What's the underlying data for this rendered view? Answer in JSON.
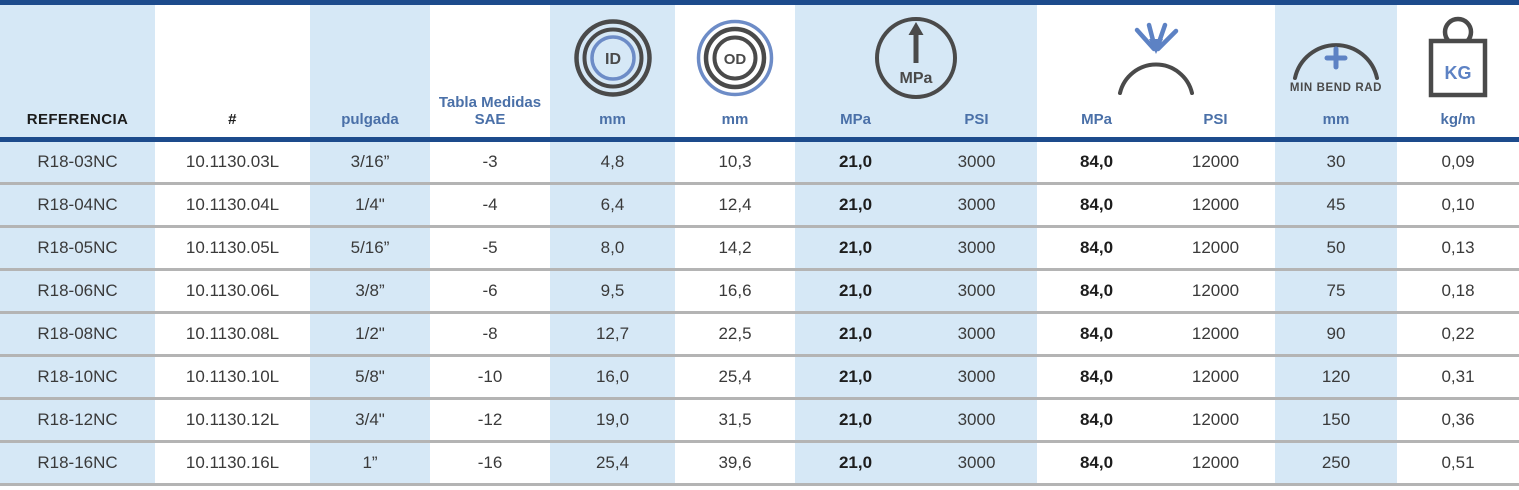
{
  "colors": {
    "navy": "#1d4b8c",
    "light_blue": "#d6e8f6",
    "header_blue": "#4a70a8",
    "icon_blue": "#5d82c4",
    "icon_dark": "#4a4a4a",
    "row_divider": "#b4b4b4"
  },
  "table": {
    "headers": {
      "referencia": "REFERENCIA",
      "part_number": "#",
      "pulgada": "pulgada",
      "sae_line1": "Tabla Medidas",
      "sae_line2": "SAE",
      "id_unit": "mm",
      "od_unit": "mm",
      "work_mpa": "MPa",
      "work_psi": "PSI",
      "burst_mpa": "MPa",
      "burst_psi": "PSI",
      "bend_unit": "mm",
      "weight_unit": "kg/m",
      "id_icon_label": "ID",
      "od_icon_label": "OD",
      "gauge_icon_label": "MPa",
      "min_bend_label": "MIN BEND RAD",
      "kg_icon_label": "KG"
    },
    "rows": [
      {
        "ref": "R18-03NC",
        "num": "10.1130.03L",
        "inch": "3/16”",
        "sae": "-3",
        "id": "4,8",
        "od": "10,3",
        "wp_mpa": "21,0",
        "wp_psi": "3000",
        "bp_mpa": "84,0",
        "bp_psi": "12000",
        "bend": "30",
        "weight": "0,09"
      },
      {
        "ref": "R18-04NC",
        "num": "10.1130.04L",
        "inch": "1/4\"",
        "sae": "-4",
        "id": "6,4",
        "od": "12,4",
        "wp_mpa": "21,0",
        "wp_psi": "3000",
        "bp_mpa": "84,0",
        "bp_psi": "12000",
        "bend": "45",
        "weight": "0,10"
      },
      {
        "ref": "R18-05NC",
        "num": "10.1130.05L",
        "inch": "5/16”",
        "sae": "-5",
        "id": "8,0",
        "od": "14,2",
        "wp_mpa": "21,0",
        "wp_psi": "3000",
        "bp_mpa": "84,0",
        "bp_psi": "12000",
        "bend": "50",
        "weight": "0,13"
      },
      {
        "ref": "R18-06NC",
        "num": "10.1130.06L",
        "inch": "3/8”",
        "sae": "-6",
        "id": "9,5",
        "od": "16,6",
        "wp_mpa": "21,0",
        "wp_psi": "3000",
        "bp_mpa": "84,0",
        "bp_psi": "12000",
        "bend": "75",
        "weight": "0,18"
      },
      {
        "ref": "R18-08NC",
        "num": "10.1130.08L",
        "inch": "1/2\"",
        "sae": "-8",
        "id": "12,7",
        "od": "22,5",
        "wp_mpa": "21,0",
        "wp_psi": "3000",
        "bp_mpa": "84,0",
        "bp_psi": "12000",
        "bend": "90",
        "weight": "0,22"
      },
      {
        "ref": "R18-10NC",
        "num": "10.1130.10L",
        "inch": "5/8\"",
        "sae": "-10",
        "id": "16,0",
        "od": "25,4",
        "wp_mpa": "21,0",
        "wp_psi": "3000",
        "bp_mpa": "84,0",
        "bp_psi": "12000",
        "bend": "120",
        "weight": "0,31"
      },
      {
        "ref": "R18-12NC",
        "num": "10.1130.12L",
        "inch": "3/4\"",
        "sae": "-12",
        "id": "19,0",
        "od": "31,5",
        "wp_mpa": "21,0",
        "wp_psi": "3000",
        "bp_mpa": "84,0",
        "bp_psi": "12000",
        "bend": "150",
        "weight": "0,36"
      },
      {
        "ref": "R18-16NC",
        "num": "10.1130.16L",
        "inch": "1”",
        "sae": "-16",
        "id": "25,4",
        "od": "39,6",
        "wp_mpa": "21,0",
        "wp_psi": "3000",
        "bp_mpa": "84,0",
        "bp_psi": "12000",
        "bend": "250",
        "weight": "0,51"
      }
    ]
  }
}
